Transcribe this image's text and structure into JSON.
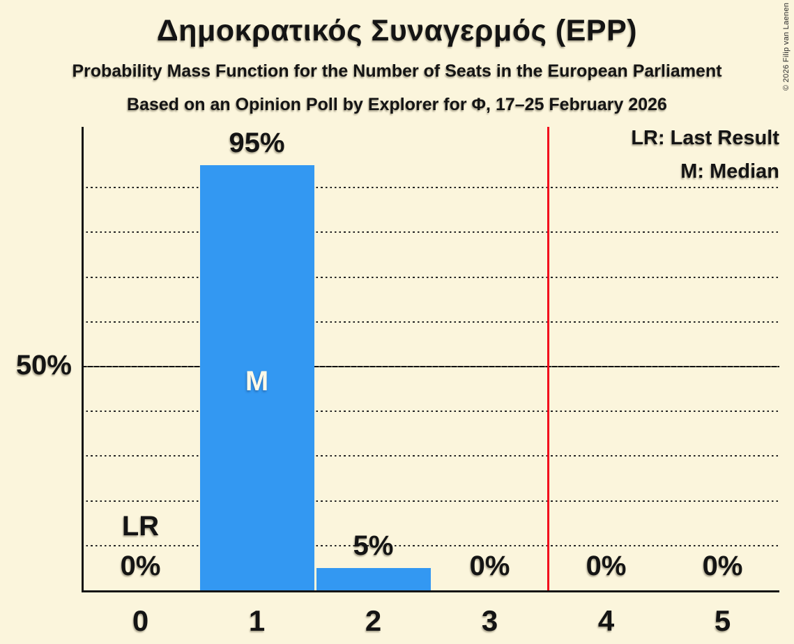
{
  "header": {
    "title": "Δημοκρατικός Συναγερμός (EPP)",
    "subtitle1": "Probability Mass Function for the Number of Seats in the European Parliament",
    "subtitle2": "Based on an Opinion Poll by Explorer for Φ, 17–25 February 2026"
  },
  "copyright": "© 2026 Filip van Laenen",
  "legend": {
    "lr": "LR: Last Result",
    "m": "M: Median"
  },
  "y_axis": {
    "label_50": "50%"
  },
  "colors": {
    "background": "#fbf5dc",
    "bar": "#3398f2",
    "threshold_line": "#f2081c",
    "text": "#141414",
    "gridline": "#222222",
    "median_text": "#fdf9e8"
  },
  "chart_data": {
    "type": "bar",
    "title": "Δημοκρατικός Συναγερμός (EPP)",
    "categories": [
      "0",
      "1",
      "2",
      "3",
      "4",
      "5"
    ],
    "values": [
      0,
      95,
      5,
      0,
      0,
      0
    ],
    "value_labels": [
      "0%",
      "95%",
      "5%",
      "0%",
      "0%",
      "0%"
    ],
    "ylim": [
      0,
      100
    ],
    "gridlines_pct": [
      10,
      20,
      30,
      40,
      50,
      60,
      70,
      80,
      90
    ],
    "solid_gridline_pct": 50,
    "median_category_index": 1,
    "median_label": "M",
    "last_result_category_index": 0,
    "last_result_label": "LR",
    "threshold_line_position": 3.5,
    "legend_position": "top-right",
    "grid": "dotted-horizontal"
  }
}
